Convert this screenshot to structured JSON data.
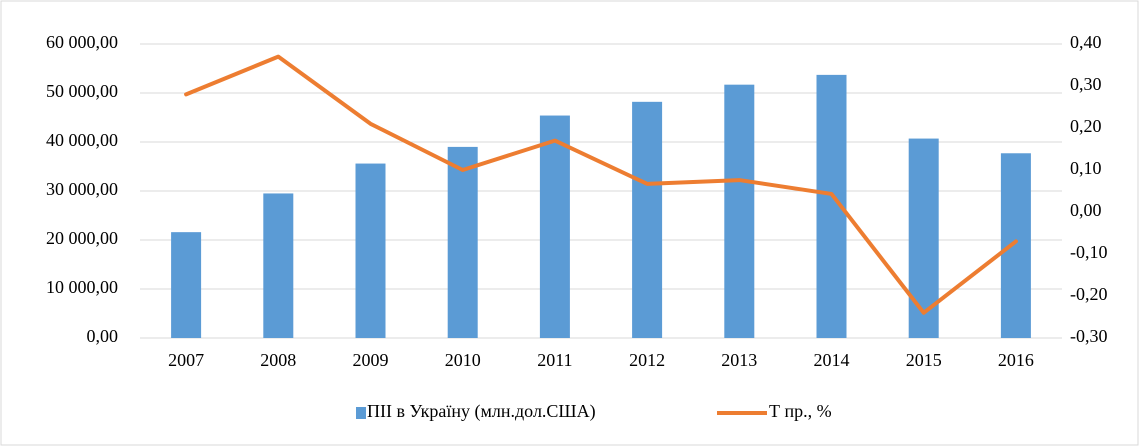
{
  "chart_data": {
    "type": "bar_line",
    "categories": [
      "2007",
      "2008",
      "2009",
      "2010",
      "2011",
      "2012",
      "2013",
      "2014",
      "2015",
      "2016"
    ],
    "series": [
      {
        "name": "ПІІ в Україну (млн.дол.США)",
        "type": "bar",
        "color": "#5b9bd5",
        "axis": "y",
        "values": [
          21600,
          29500,
          35600,
          39000,
          45400,
          48200,
          51700,
          53700,
          40700,
          37700
        ]
      },
      {
        "name": "Т пр., %",
        "type": "line",
        "color": "#ed7d31",
        "axis": "y2",
        "values": [
          0.28,
          0.37,
          0.21,
          0.1,
          0.17,
          0.067,
          0.076,
          0.043,
          -0.24,
          -0.07
        ]
      }
    ],
    "ylim": [
      0,
      60000
    ],
    "yticks": [
      {
        "value": 0,
        "label": "0,00"
      },
      {
        "value": 10000,
        "label": "10 000,00"
      },
      {
        "value": 20000,
        "label": "20 000,00"
      },
      {
        "value": 30000,
        "label": "30 000,00"
      },
      {
        "value": 40000,
        "label": "40 000,00"
      },
      {
        "value": 50000,
        "label": "50 000,00"
      },
      {
        "value": 60000,
        "label": "60 000,00"
      }
    ],
    "y2lim": [
      -0.3,
      0.4
    ],
    "y2ticks": [
      {
        "value": -0.3,
        "label": "-0,30"
      },
      {
        "value": -0.2,
        "label": "-0,20"
      },
      {
        "value": -0.1,
        "label": "-0,10"
      },
      {
        "value": 0,
        "label": "0,00"
      },
      {
        "value": 0.1,
        "label": "0,10"
      },
      {
        "value": 0.2,
        "label": "0,20"
      },
      {
        "value": 0.3,
        "label": "0,30"
      },
      {
        "value": 0.4,
        "label": "0,40"
      }
    ],
    "grid": true,
    "legend": "bottom"
  }
}
